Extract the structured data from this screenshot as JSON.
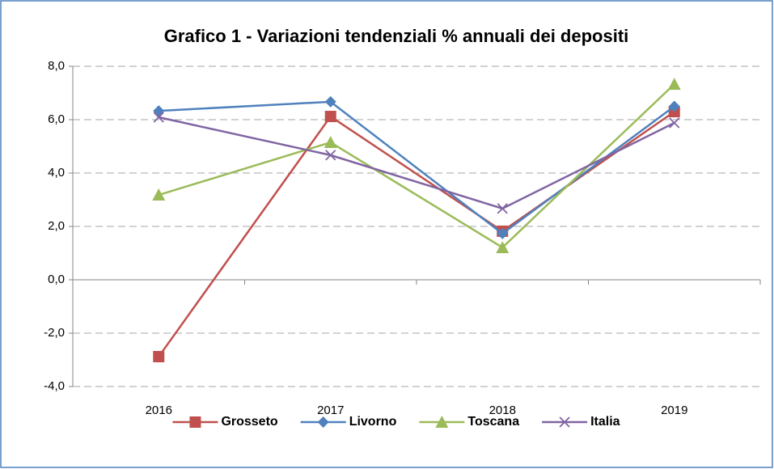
{
  "chart_data": {
    "type": "line",
    "title": "Grafico 1 - Variazioni tendenziali % annuali dei depositi",
    "categories": [
      "2016",
      "2017",
      "2018",
      "2019"
    ],
    "series": [
      {
        "name": "Grosseto",
        "color": "#c0504d",
        "marker": "square",
        "values": [
          -2.88,
          6.12,
          1.82,
          6.3
        ]
      },
      {
        "name": "Livorno",
        "color": "#4f81bd",
        "marker": "diamond",
        "values": [
          6.33,
          6.67,
          1.73,
          6.5
        ]
      },
      {
        "name": "Toscana",
        "color": "#9bbb59",
        "marker": "triangle",
        "values": [
          3.18,
          5.15,
          1.21,
          7.33
        ]
      },
      {
        "name": "Italia",
        "color": "#8064a2",
        "marker": "x",
        "values": [
          6.09,
          4.67,
          2.67,
          5.88
        ]
      }
    ],
    "ylim": [
      -4,
      8
    ],
    "yticks": [
      {
        "value": -4,
        "label": "-4,0"
      },
      {
        "value": -2,
        "label": "-2,0"
      },
      {
        "value": 0,
        "label": "0,0"
      },
      {
        "value": 2,
        "label": "2,0"
      },
      {
        "value": 4,
        "label": "4,0"
      },
      {
        "value": 6,
        "label": "6,0"
      },
      {
        "value": 8,
        "label": "8,0"
      }
    ],
    "grid": true,
    "legend": "bottom"
  }
}
